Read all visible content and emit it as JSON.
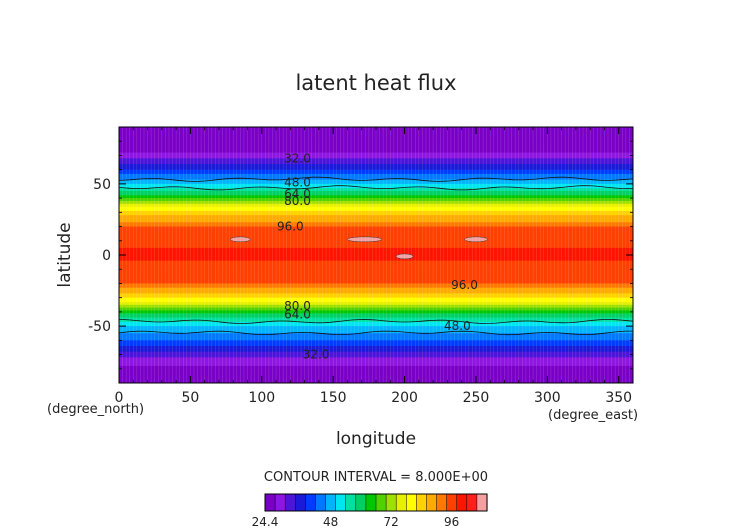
{
  "chart_data": {
    "type": "heatmap",
    "title": "latent heat flux",
    "xlabel": "longitude",
    "ylabel": "latitude",
    "x_unit": "(degree_east)",
    "y_unit": "(degree_north)",
    "xlim": [
      0,
      360
    ],
    "ylim": [
      -90,
      90
    ],
    "x_ticks": [
      0,
      50,
      100,
      150,
      200,
      250,
      300,
      350
    ],
    "y_ticks": [
      -50,
      0,
      50
    ],
    "contour_interval_text": "CONTOUR INTERVAL = 8.000E+00",
    "contour_interval": 8.0,
    "colorbar": {
      "min": 24.4,
      "tick_labels": [
        "24.4",
        "48",
        "72",
        "96"
      ],
      "levels": [
        24.4,
        28,
        32,
        36,
        40,
        44,
        48,
        52,
        56,
        60,
        64,
        68,
        72,
        76,
        80,
        84,
        88,
        92,
        96,
        100,
        104,
        108
      ],
      "colors": [
        "#7a00c8",
        "#8e16e0",
        "#4d14d9",
        "#1a1ad8",
        "#003cff",
        "#0078ff",
        "#00b4ff",
        "#00e6f0",
        "#00e0a0",
        "#00d064",
        "#00c800",
        "#50d200",
        "#a0e000",
        "#e6f000",
        "#ffff00",
        "#ffd200",
        "#ffaa00",
        "#ff7800",
        "#ff4000",
        "#ff1400",
        "#ff1e1e",
        "#f4a0a0"
      ]
    },
    "zonal_profile": {
      "lat": [
        -90,
        -82,
        -74,
        -68,
        -62,
        -56,
        -50,
        -45,
        -41,
        -37,
        -33,
        -29,
        -25,
        -20,
        -15,
        -8,
        0,
        8,
        15,
        20,
        25,
        30,
        34,
        38,
        42,
        46,
        50,
        55,
        60,
        66,
        72,
        80,
        90
      ],
      "value": [
        24.4,
        26,
        30,
        36,
        42,
        47,
        52,
        58,
        64,
        72,
        80,
        86,
        90,
        96,
        100,
        98,
        102,
        99,
        100,
        96,
        90,
        86,
        80,
        72,
        64,
        58,
        52,
        46,
        40,
        34,
        28,
        26,
        24.4
      ]
    },
    "contour_labels": [
      {
        "text": "32.0",
        "lon": 125,
        "lat": 68
      },
      {
        "text": "48.0",
        "lon": 125,
        "lat": 51
      },
      {
        "text": "64.0",
        "lon": 125,
        "lat": 43
      },
      {
        "text": "80.0",
        "lon": 125,
        "lat": 38
      },
      {
        "text": "96.0",
        "lon": 120,
        "lat": 20
      },
      {
        "text": "96.0",
        "lon": 242,
        "lat": -21
      },
      {
        "text": "80.0",
        "lon": 125,
        "lat": -36
      },
      {
        "text": "64.0",
        "lon": 125,
        "lat": -42
      },
      {
        "text": "48.0",
        "lon": 237,
        "lat": -50
      },
      {
        "text": "32.0",
        "lon": 138,
        "lat": -70
      }
    ],
    "high_patches": [
      {
        "lon": 85,
        "lat": 11,
        "w": 14
      },
      {
        "lon": 172,
        "lat": 11,
        "w": 24
      },
      {
        "lon": 250,
        "lat": 11,
        "w": 16
      },
      {
        "lon": 200,
        "lat": -1,
        "w": 12
      }
    ]
  }
}
